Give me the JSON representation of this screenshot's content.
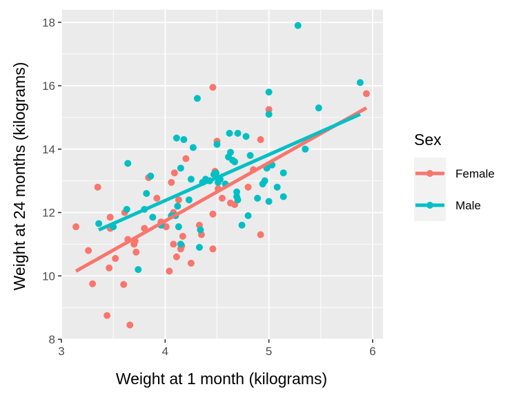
{
  "chart_data": {
    "type": "scatter",
    "xlabel": "Weight at 1 month (kilograms)",
    "ylabel": "Weight at 24 months (kilograms)",
    "xlim": [
      3,
      6.1
    ],
    "ylim": [
      8,
      18.4
    ],
    "xticks": [
      3,
      4,
      5,
      6
    ],
    "yticks": [
      8,
      10,
      12,
      14,
      16,
      18
    ],
    "xtick_labels": [
      "3",
      "4",
      "5",
      "6"
    ],
    "ytick_labels": [
      "8",
      "10",
      "12",
      "14",
      "16",
      "18"
    ],
    "grid": true,
    "legend": {
      "title": "Sex",
      "placement": "right"
    },
    "series": [
      {
        "name": "Female",
        "color": "#f8766d",
        "fit": {
          "x": [
            3.14,
            5.94
          ],
          "y": [
            10.15,
            15.3
          ]
        },
        "points": [
          [
            3.14,
            11.55
          ],
          [
            3.26,
            10.8
          ],
          [
            3.3,
            9.75
          ],
          [
            3.35,
            12.8
          ],
          [
            3.44,
            8.75
          ],
          [
            3.46,
            10.25
          ],
          [
            3.47,
            11.85
          ],
          [
            3.47,
            11.5
          ],
          [
            3.52,
            10.55
          ],
          [
            3.6,
            9.73
          ],
          [
            3.61,
            12.0
          ],
          [
            3.64,
            11.15
          ],
          [
            3.66,
            8.45
          ],
          [
            3.7,
            11.0
          ],
          [
            3.71,
            11.1
          ],
          [
            3.72,
            10.75
          ],
          [
            3.8,
            11.5
          ],
          [
            3.84,
            13.1
          ],
          [
            3.92,
            12.45
          ],
          [
            3.96,
            11.7
          ],
          [
            3.98,
            11.6
          ],
          [
            4.01,
            11.55
          ],
          [
            4.04,
            10.15
          ],
          [
            4.06,
            12.95
          ],
          [
            4.08,
            12.0
          ],
          [
            4.08,
            11.0
          ],
          [
            4.09,
            13.25
          ],
          [
            4.11,
            10.6
          ],
          [
            4.13,
            12.4
          ],
          [
            4.15,
            10.85
          ],
          [
            4.16,
            10.95
          ],
          [
            4.17,
            11.25
          ],
          [
            4.2,
            13.7
          ],
          [
            4.25,
            10.4
          ],
          [
            4.33,
            11.6
          ],
          [
            4.35,
            11.3
          ],
          [
            4.46,
            15.95
          ],
          [
            4.46,
            11.95
          ],
          [
            4.46,
            10.85
          ],
          [
            4.48,
            13.3
          ],
          [
            4.5,
            14.25
          ],
          [
            4.51,
            12.75
          ],
          [
            4.55,
            12.45
          ],
          [
            4.63,
            12.3
          ],
          [
            4.67,
            12.25
          ],
          [
            4.8,
            12.8
          ],
          [
            4.85,
            13.35
          ],
          [
            4.92,
            14.3
          ],
          [
            4.92,
            11.3
          ],
          [
            5.0,
            15.25
          ],
          [
            5.94,
            15.75
          ]
        ]
      },
      {
        "name": "Male",
        "color": "#00bfc4",
        "fit": {
          "x": [
            3.36,
            5.88
          ],
          "y": [
            11.45,
            15.1
          ]
        },
        "points": [
          [
            3.36,
            11.65
          ],
          [
            3.5,
            11.55
          ],
          [
            3.63,
            12.1
          ],
          [
            3.64,
            13.55
          ],
          [
            3.74,
            10.2
          ],
          [
            3.8,
            12.1
          ],
          [
            3.82,
            12.6
          ],
          [
            3.86,
            13.15
          ],
          [
            3.88,
            11.85
          ],
          [
            3.96,
            11.6
          ],
          [
            4.06,
            11.9
          ],
          [
            4.1,
            11.9
          ],
          [
            4.11,
            14.35
          ],
          [
            4.12,
            12.2
          ],
          [
            4.13,
            11.55
          ],
          [
            4.15,
            13.4
          ],
          [
            4.15,
            11.0
          ],
          [
            4.18,
            14.3
          ],
          [
            4.23,
            12.4
          ],
          [
            4.25,
            13.05
          ],
          [
            4.27,
            14.05
          ],
          [
            4.31,
            15.6
          ],
          [
            4.33,
            10.9
          ],
          [
            4.34,
            11.45
          ],
          [
            4.36,
            12.95
          ],
          [
            4.39,
            13.05
          ],
          [
            4.43,
            13.0
          ],
          [
            4.47,
            13.2
          ],
          [
            4.49,
            13.25
          ],
          [
            4.5,
            14.15
          ],
          [
            4.51,
            12.95
          ],
          [
            4.53,
            13.05
          ],
          [
            4.58,
            12.9
          ],
          [
            4.61,
            13.75
          ],
          [
            4.62,
            14.5
          ],
          [
            4.63,
            13.9
          ],
          [
            4.65,
            13.65
          ],
          [
            4.67,
            13.6
          ],
          [
            4.69,
            12.5
          ],
          [
            4.69,
            12.65
          ],
          [
            4.7,
            14.5
          ],
          [
            4.7,
            12.4
          ],
          [
            4.74,
            11.6
          ],
          [
            4.78,
            14.4
          ],
          [
            4.8,
            11.9
          ],
          [
            4.82,
            13.8
          ],
          [
            4.89,
            12.45
          ],
          [
            4.94,
            12.9
          ],
          [
            4.96,
            13.0
          ],
          [
            4.98,
            13.4
          ],
          [
            5.0,
            12.35
          ],
          [
            5.0,
            15.8
          ],
          [
            5.0,
            15.1
          ],
          [
            5.03,
            13.5
          ],
          [
            5.08,
            12.8
          ],
          [
            5.14,
            12.5
          ],
          [
            5.14,
            13.25
          ],
          [
            5.28,
            17.9
          ],
          [
            5.35,
            14.0
          ],
          [
            5.48,
            15.3
          ],
          [
            5.88,
            16.1
          ]
        ]
      }
    ]
  }
}
